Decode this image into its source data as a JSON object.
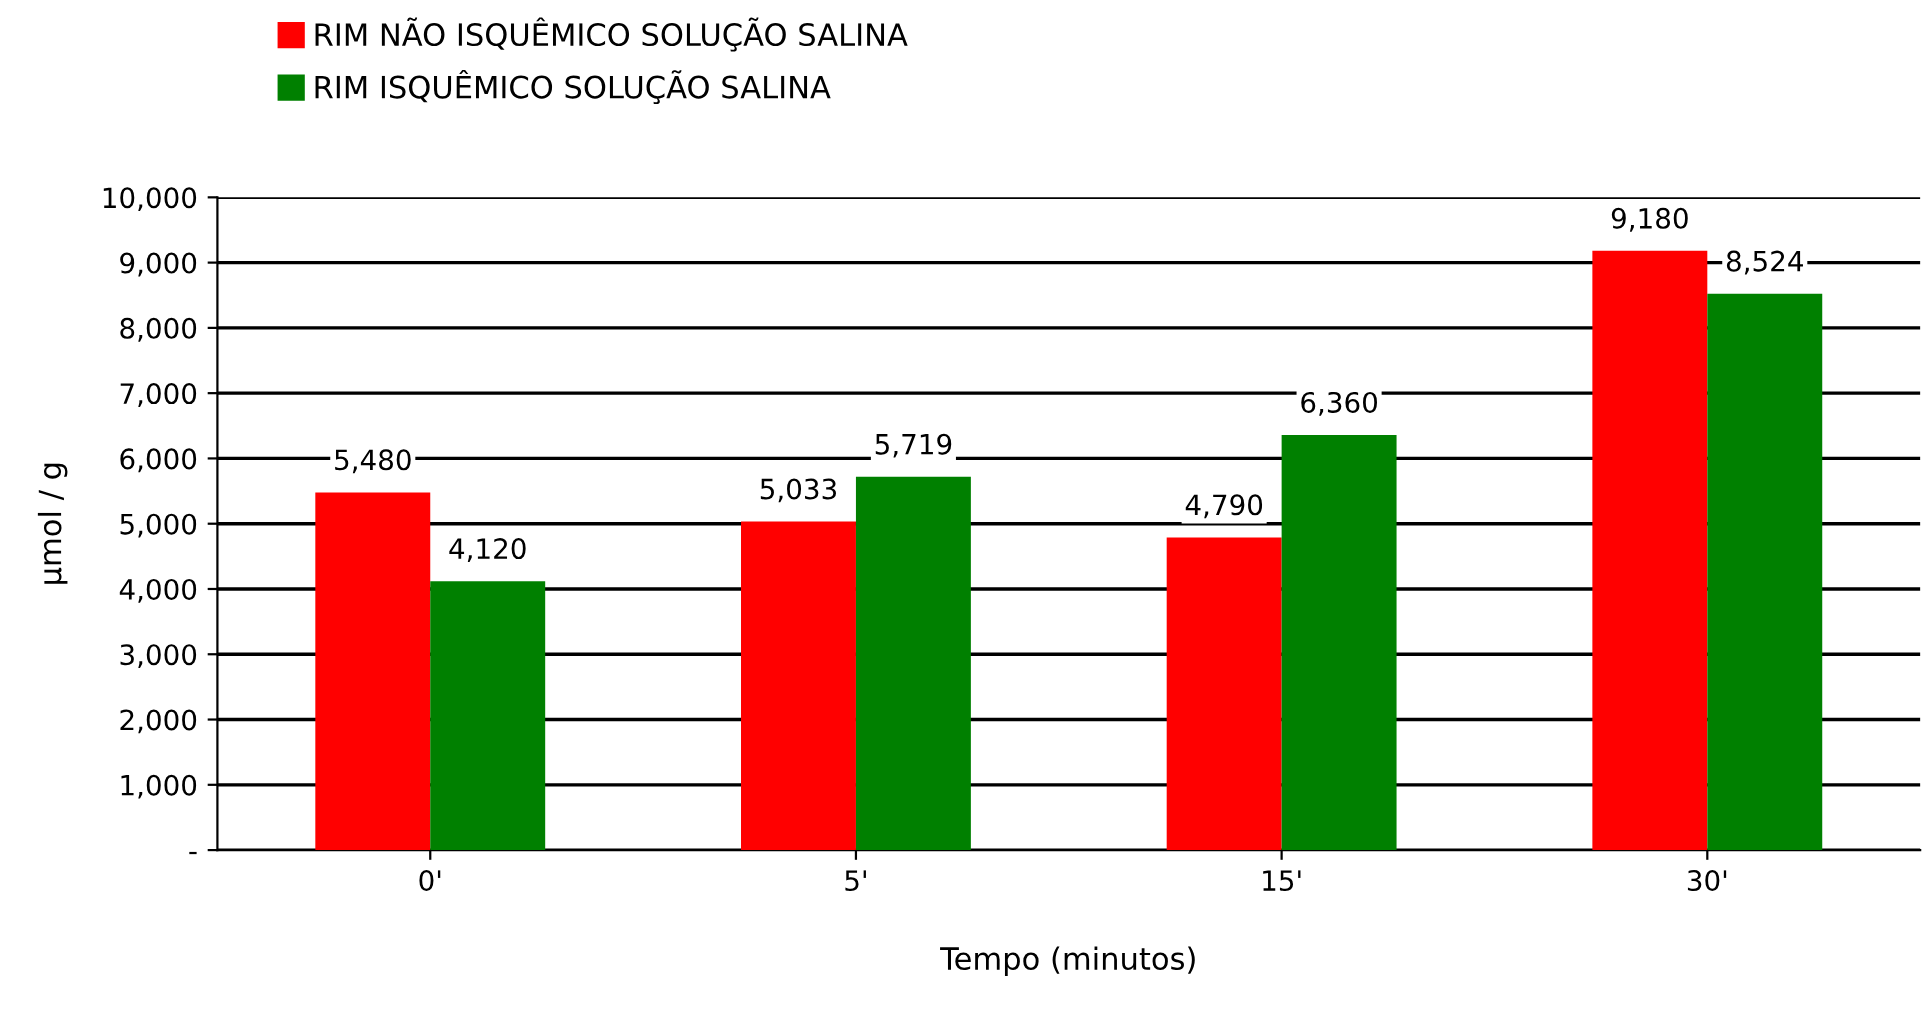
{
  "chart_data": {
    "type": "bar",
    "xlabel": "Tempo (minutos)",
    "ylabel": "µmol / g",
    "categories": [
      "0'",
      "5'",
      "15'",
      "30'"
    ],
    "series": [
      {
        "name": "RIM NÃO ISQUÊMICO SOLUÇÃO SALINA",
        "color": "#ff0000",
        "values": [
          5480,
          5033,
          4790,
          9180
        ],
        "value_labels": [
          "5,480",
          "5,033",
          "4,790",
          "9,180"
        ]
      },
      {
        "name": "RIM ISQUÊMICO SOLUÇÃO SALINA",
        "color": "#008000",
        "values": [
          4120,
          5719,
          6360,
          8524
        ],
        "value_labels": [
          "4,120",
          "5,719",
          "6,360",
          "8,524"
        ]
      }
    ],
    "ylim": [
      0,
      10000
    ],
    "yticks": [
      {
        "value": 0,
        "label": "-"
      },
      {
        "value": 1000,
        "label": "1,000"
      },
      {
        "value": 2000,
        "label": "2,000"
      },
      {
        "value": 3000,
        "label": "3,000"
      },
      {
        "value": 4000,
        "label": "4,000"
      },
      {
        "value": 5000,
        "label": "5,000"
      },
      {
        "value": 6000,
        "label": "6,000"
      },
      {
        "value": 7000,
        "label": "7,000"
      },
      {
        "value": 8000,
        "label": "8,000"
      },
      {
        "value": 9000,
        "label": "9,000"
      },
      {
        "value": 10000,
        "label": "10,000"
      }
    ],
    "grid": "y",
    "legend": "top left"
  }
}
